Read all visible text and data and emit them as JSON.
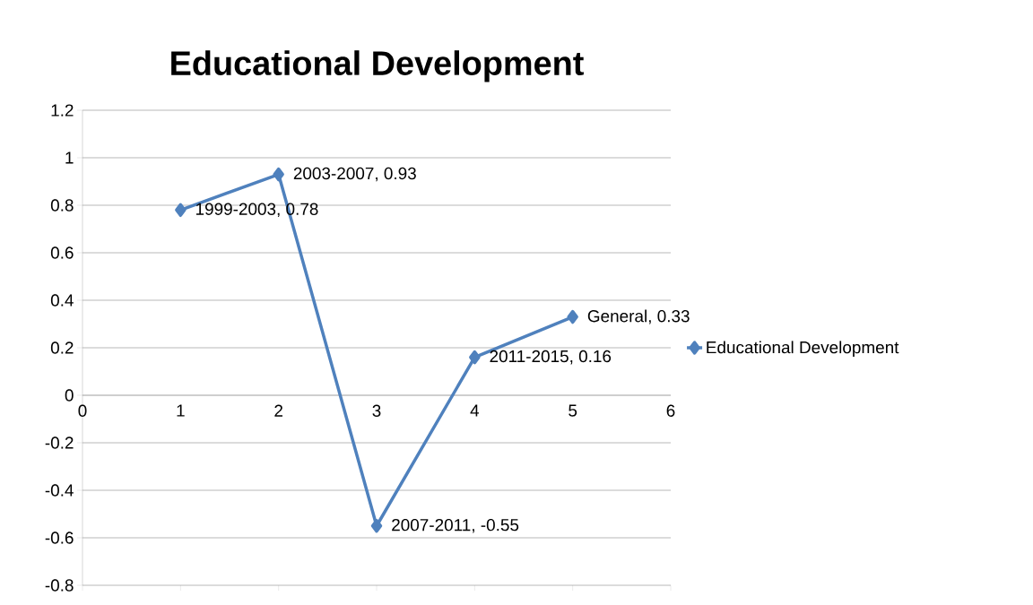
{
  "chart_data": {
    "type": "line",
    "title": "Educational Development",
    "x": [
      1,
      2,
      3,
      4,
      5
    ],
    "series": [
      {
        "name": "Educational Development",
        "color": "#4f81bd",
        "values": [
          0.78,
          0.93,
          -0.55,
          0.16,
          0.33
        ]
      }
    ],
    "annotations": [
      {
        "text": "1999-2003, 0.78",
        "x": 1,
        "y": 0.78
      },
      {
        "text": "2003-2007, 0.93",
        "x": 2,
        "y": 0.93
      },
      {
        "text": "2007-2011, -0.55",
        "x": 3,
        "y": -0.55
      },
      {
        "text": "2011-2015, 0.16",
        "x": 4,
        "y": 0.16
      },
      {
        "text": "General, 0.33",
        "x": 5,
        "y": 0.33
      }
    ],
    "xlim": [
      0,
      6
    ],
    "xticks": [
      0,
      1,
      2,
      3,
      4,
      5,
      6
    ],
    "ylim": [
      -0.8,
      1.2
    ],
    "yticks": [
      -0.8,
      -0.6,
      -0.4,
      -0.2,
      0,
      0.2,
      0.4,
      0.6,
      0.8,
      1,
      1.2
    ],
    "grid": "y",
    "legend": "right",
    "marker": "diamond",
    "line_style": "solid"
  }
}
